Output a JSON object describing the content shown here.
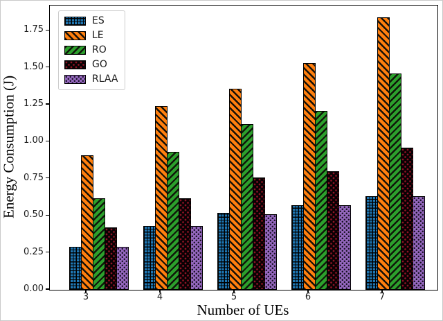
{
  "chart_data": {
    "type": "bar",
    "title": "",
    "xlabel": "Number of UEs",
    "ylabel": "Energy Consumption (J)",
    "categories": [
      "3",
      "4",
      "5",
      "6",
      "7"
    ],
    "series": [
      {
        "name": "ES",
        "color": "#1f77b4",
        "hatch": "plus",
        "values": [
          0.29,
          0.43,
          0.52,
          0.57,
          0.63
        ]
      },
      {
        "name": "LE",
        "color": "#ff7f0e",
        "hatch": "backslash",
        "values": [
          0.91,
          1.24,
          1.36,
          1.53,
          1.84
        ]
      },
      {
        "name": "RO",
        "color": "#2ca02c",
        "hatch": "slash",
        "values": [
          0.62,
          0.93,
          1.12,
          1.21,
          1.46
        ]
      },
      {
        "name": "GO",
        "color": "#0a0104",
        "hatch": "dots-red",
        "values": [
          0.42,
          0.62,
          0.76,
          0.8,
          0.96
        ]
      },
      {
        "name": "RLAA",
        "color": "#9467bd",
        "hatch": "dots-dark",
        "values": [
          0.29,
          0.43,
          0.51,
          0.57,
          0.63
        ]
      }
    ],
    "yticks": [
      0.0,
      0.25,
      0.5,
      0.75,
      1.0,
      1.25,
      1.5,
      1.75
    ],
    "ytick_labels": [
      "0.00",
      "0.25",
      "0.50",
      "0.75",
      "1.00",
      "1.25",
      "1.50",
      "1.75"
    ],
    "ylim": [
      0,
      1.92
    ],
    "legend_position": "upper-left",
    "grid": false
  }
}
